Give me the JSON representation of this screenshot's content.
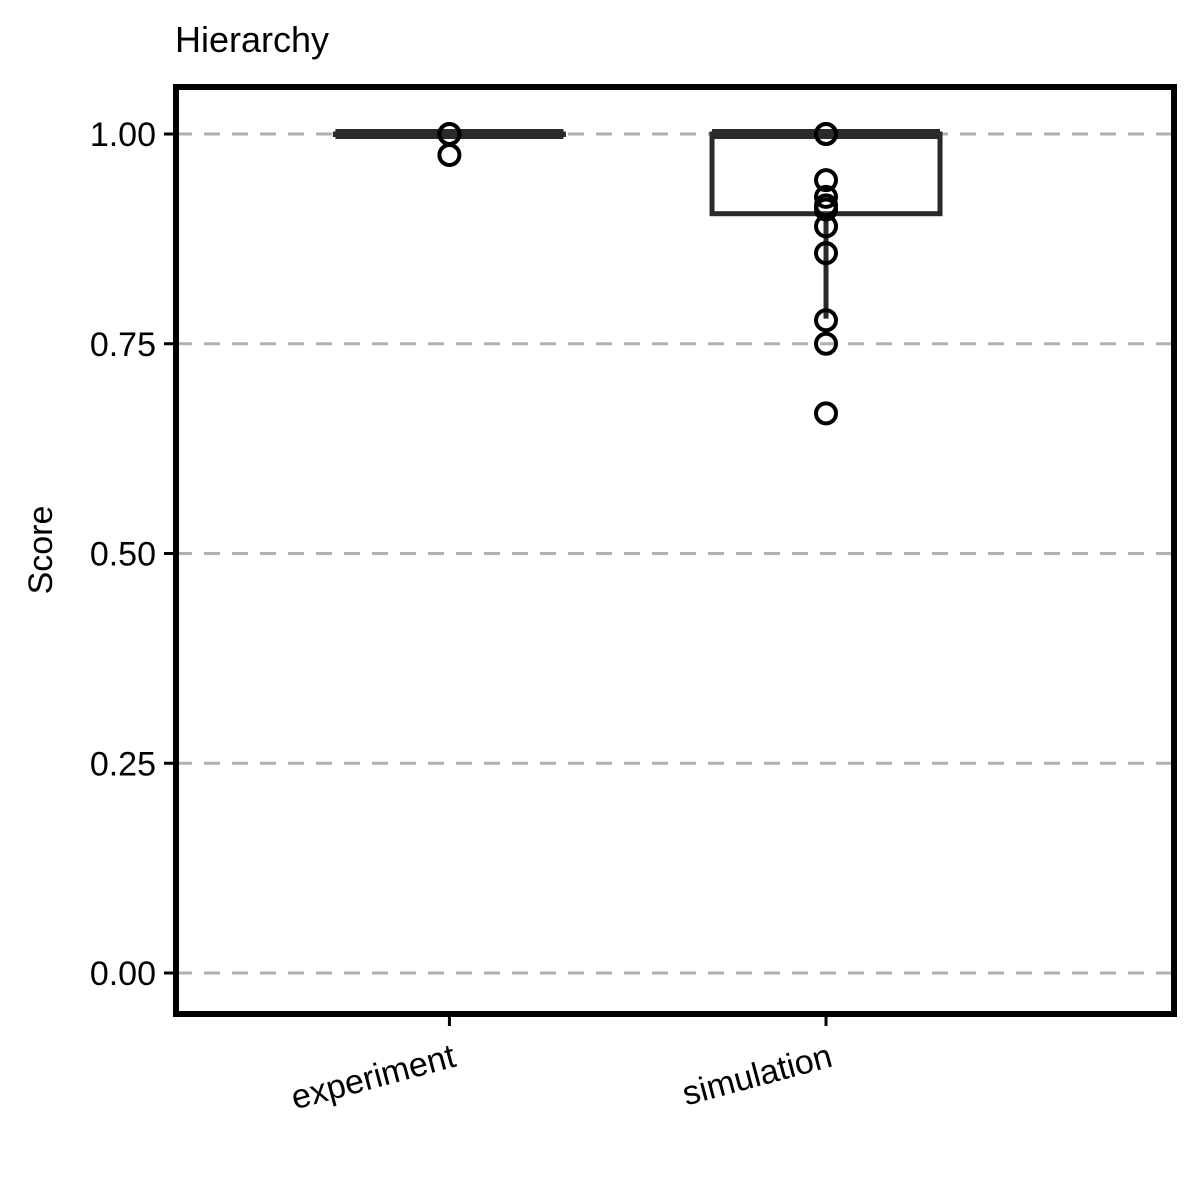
{
  "chart_data": {
    "type": "box",
    "title": "Hierarchy",
    "xlabel": "",
    "ylabel": "Score",
    "ylim": [
      -0.05,
      1.035
    ],
    "y_ticks": [
      "0.00",
      "0.25",
      "0.50",
      "0.75",
      "1.00"
    ],
    "y_tick_values": [
      0,
      0.25,
      0.5,
      0.75,
      1.0
    ],
    "grid": "horizontal dashed",
    "categories": [
      "experiment",
      "simulation"
    ],
    "boxes": [
      {
        "category": "experiment",
        "min": 1.0,
        "q1": 1.0,
        "median": 1.0,
        "q3": 1.0,
        "max": 1.0,
        "outliers": [
          1.0,
          1.0,
          0.975
        ]
      },
      {
        "category": "simulation",
        "min": 0.78,
        "q1": 0.905,
        "median": 1.0,
        "q3": 1.0,
        "max": 1.0,
        "outliers": [
          1.0,
          1.0,
          0.945,
          0.925,
          0.915,
          0.91,
          0.89,
          0.858,
          0.778,
          0.75,
          0.667
        ]
      }
    ],
    "colors": {
      "box": "#2a2a2a",
      "grid": "#b0b0b0",
      "frame": "#000000",
      "point": "#000000"
    }
  }
}
